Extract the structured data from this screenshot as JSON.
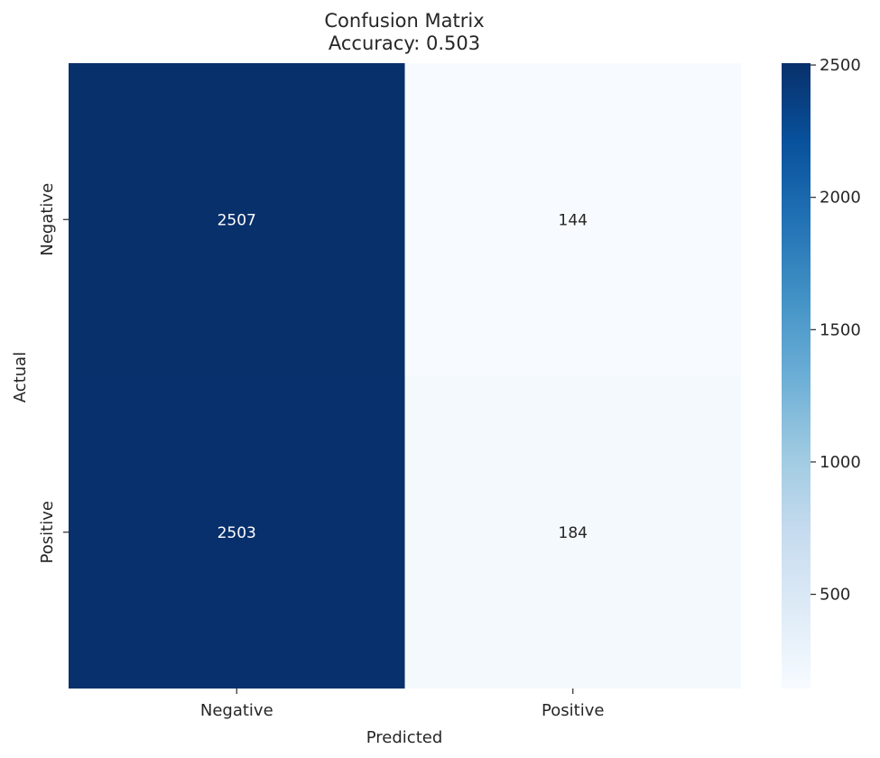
{
  "chart_data": {
    "type": "heatmap",
    "title": "Confusion Matrix",
    "subtitle": "Accuracy: 0.503",
    "xlabel": "Predicted",
    "ylabel": "Actual",
    "x_categories": [
      "Negative",
      "Positive"
    ],
    "y_categories": [
      "Negative",
      "Positive"
    ],
    "values": [
      [
        2507,
        144
      ],
      [
        2503,
        184
      ]
    ],
    "colormap": "Blues",
    "color_range": [
      144,
      2507
    ],
    "colorbar_ticks": [
      500,
      1000,
      1500,
      2000,
      2500
    ],
    "cell_text_colors": {
      "dark_cell": "#ffffff",
      "light_cell": "#262626"
    }
  }
}
